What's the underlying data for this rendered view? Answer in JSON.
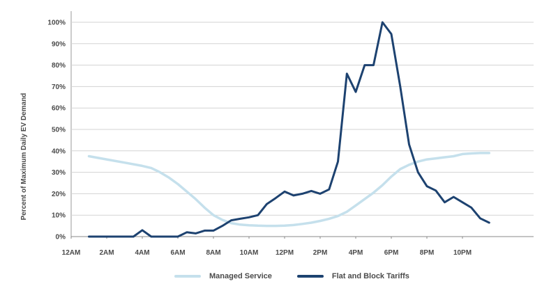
{
  "chart_data": {
    "type": "line",
    "ylabel": "Percent of Maximum Daily EV Demand",
    "ylim": [
      0,
      100
    ],
    "yticks": [
      "0%",
      "10%",
      "20%",
      "30%",
      "40%",
      "50%",
      "60%",
      "70%",
      "80%",
      "90%",
      "100%"
    ],
    "xlim": [
      0,
      26
    ],
    "xtick_positions": [
      0,
      2,
      4,
      6,
      8,
      10,
      12,
      14,
      16,
      18,
      20,
      22
    ],
    "xticks": [
      "12AM",
      "2AM",
      "4AM",
      "6AM",
      "8AM",
      "10AM",
      "12PM",
      "2PM",
      "4PM",
      "6PM",
      "8PM",
      "10PM"
    ],
    "grid": true,
    "legend_position": "bottom",
    "series": [
      {
        "name": "Managed Service",
        "color": "#c5e0ec",
        "x": [
          1,
          2,
          3,
          4,
          4.5,
          5,
          5.5,
          6,
          6.5,
          7,
          7.5,
          8,
          8.5,
          9,
          9.5,
          10,
          10.5,
          11,
          11.5,
          12,
          12.5,
          13,
          13.5,
          14,
          14.5,
          15,
          15.5,
          16,
          16.5,
          17,
          17.5,
          18,
          18.5,
          19,
          19.5,
          20,
          20.5,
          21,
          21.5,
          22,
          22.5,
          23,
          23.5
        ],
        "values": [
          37.5,
          36,
          34.5,
          33,
          32,
          30,
          27.5,
          24.5,
          21,
          17.5,
          13.5,
          10,
          7.8,
          6.3,
          5.6,
          5.3,
          5.1,
          5.0,
          5.0,
          5.1,
          5.4,
          5.9,
          6.5,
          7.3,
          8.3,
          9.6,
          11.6,
          14.5,
          17.5,
          20.5,
          24,
          28,
          31.5,
          33.5,
          35,
          36,
          36.5,
          37,
          37.5,
          38.5,
          38.8,
          39,
          39
        ]
      },
      {
        "name": "Flat and Block Tariffs",
        "color": "#1d4270",
        "x": [
          1,
          2,
          3,
          3.5,
          4,
          4.5,
          5,
          5.5,
          6,
          6.5,
          7,
          7.5,
          8,
          8.5,
          9,
          9.5,
          10,
          10.5,
          11,
          11.5,
          12,
          12.5,
          13,
          13.5,
          14,
          14.5,
          15,
          15.5,
          16,
          16.5,
          17,
          17.5,
          18,
          18.5,
          19,
          19.5,
          20,
          20.5,
          21,
          21.5,
          22,
          22.5,
          23,
          23.5
        ],
        "values": [
          0,
          0,
          0,
          0,
          3,
          0,
          0,
          0,
          0,
          2,
          1.5,
          2.8,
          2.8,
          5,
          7.6,
          8.3,
          9,
          10,
          15.2,
          18,
          21,
          19.2,
          20,
          21.3,
          20,
          22,
          35,
          76,
          67.5,
          80,
          80,
          100,
          94.5,
          70,
          43,
          30,
          23.5,
          21.5,
          16,
          18.5,
          16,
          13.5,
          8.5,
          6.5
        ]
      }
    ]
  }
}
